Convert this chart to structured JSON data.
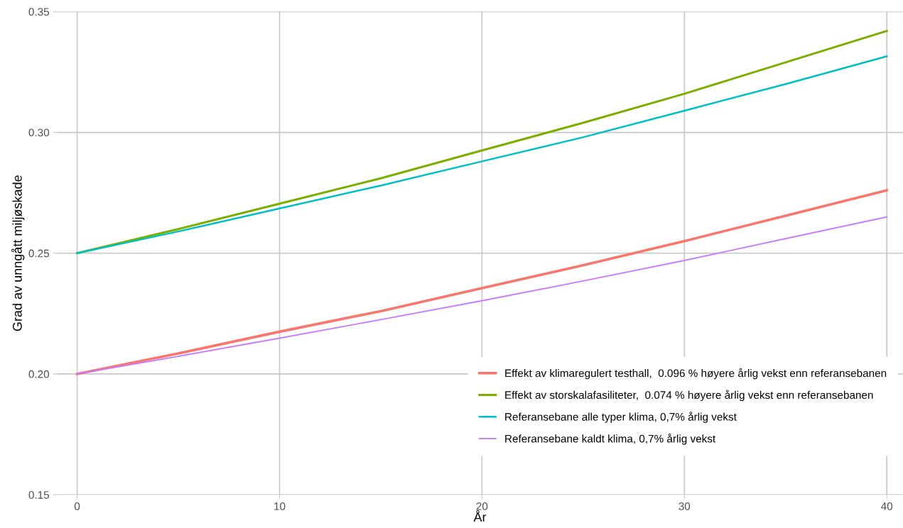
{
  "chart_data": {
    "type": "line",
    "xlabel": "År",
    "ylabel": "Grad av unngått miljøskade",
    "x": [
      0,
      5,
      10,
      15,
      20,
      25,
      30,
      35,
      40
    ],
    "series": [
      {
        "name": "Effekt av klimaregulert testhall,  0.096 % høyere årlig vekst enn referansebanen",
        "color": "#f8766d",
        "values": [
          0.2,
          0.2085,
          0.2175,
          0.226,
          0.2355,
          0.245,
          0.255,
          0.2655,
          0.276
        ]
      },
      {
        "name": "Effekt av storskalafasiliteter,  0.074 % høyere årlig vekst enn referansebanen",
        "color": "#7cae00",
        "values": [
          0.25,
          0.26,
          0.2705,
          0.281,
          0.2925,
          0.304,
          0.316,
          0.329,
          0.342
        ]
      },
      {
        "name": "Referansebane alle typer klima, 0,7% årlig vekst",
        "color": "#00bfc4",
        "values": [
          0.25,
          0.259,
          0.2685,
          0.278,
          0.288,
          0.298,
          0.309,
          0.32,
          0.3315
        ]
      },
      {
        "name": "Referansebane kaldt klima, 0,7% årlig vekst",
        "color": "#c77cff",
        "values": [
          0.2,
          0.2073,
          0.2148,
          0.2225,
          0.2303,
          0.2385,
          0.247,
          0.256,
          0.265
        ]
      }
    ],
    "xlim": [
      -1,
      40.8
    ],
    "xticks": [
      0,
      10,
      20,
      30,
      40
    ],
    "ylim": [
      0.15,
      0.35
    ],
    "yticks": [
      {
        "value": 0.15,
        "label": "0.15"
      },
      {
        "value": 0.2,
        "label": "0.20"
      },
      {
        "value": 0.25,
        "label": "0.25"
      },
      {
        "value": 0.3,
        "label": "0.30"
      },
      {
        "value": 0.35,
        "label": "0.35"
      }
    ],
    "grid": true,
    "legend": "bottom right",
    "marker": "none",
    "line_style": "solid"
  }
}
